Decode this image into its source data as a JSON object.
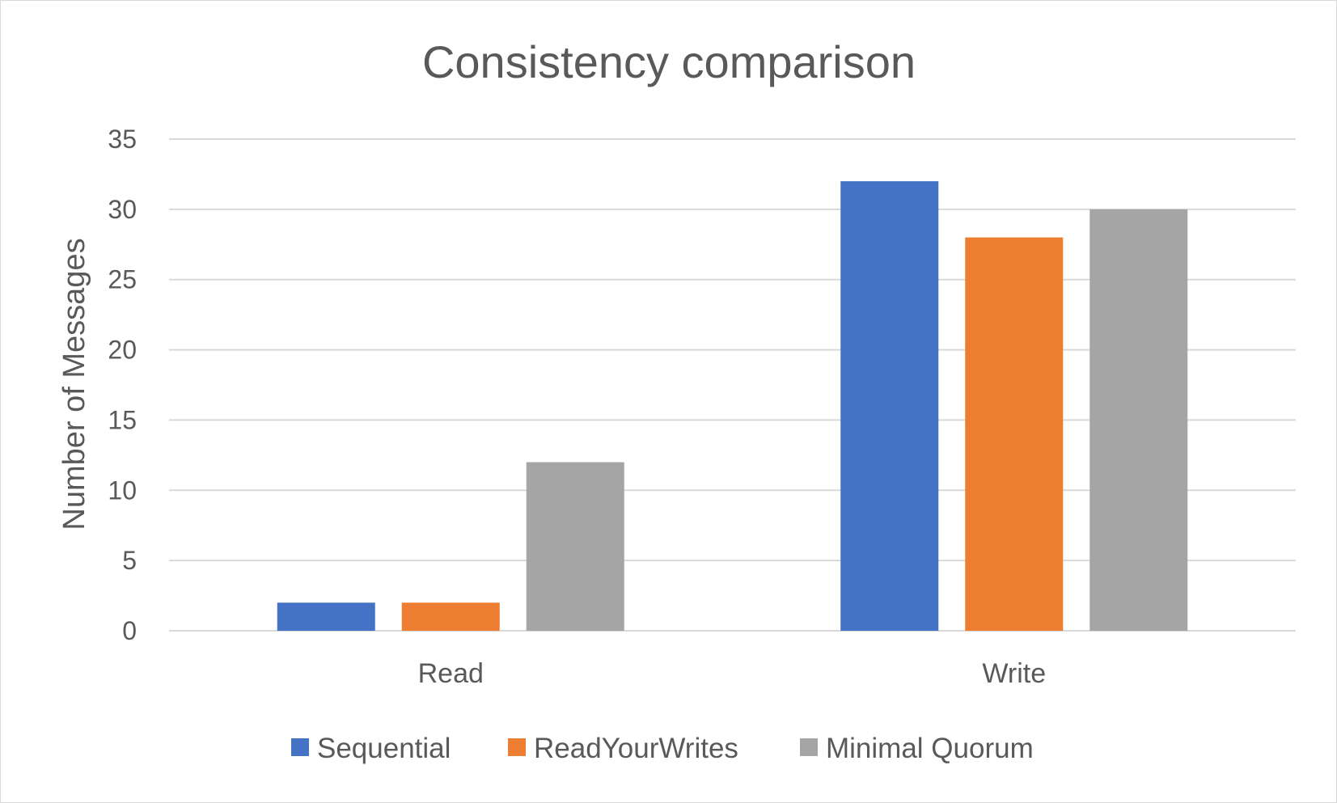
{
  "chart_data": {
    "type": "bar",
    "title": "Consistency comparison",
    "xlabel": "",
    "ylabel": "Number of Messages",
    "categories": [
      "Read",
      "Write"
    ],
    "series": [
      {
        "name": "Sequential",
        "values": [
          2,
          32
        ],
        "color": "#4472C4"
      },
      {
        "name": "ReadYourWrites",
        "values": [
          2,
          28
        ],
        "color": "#ED7D31"
      },
      {
        "name": "Minimal Quorum",
        "values": [
          12,
          30
        ],
        "color": "#A5A5A5"
      }
    ],
    "ylim": [
      0,
      35
    ],
    "yticks": [
      0,
      5,
      10,
      15,
      20,
      25,
      30,
      35
    ],
    "grid": true,
    "legend_position": "bottom"
  }
}
